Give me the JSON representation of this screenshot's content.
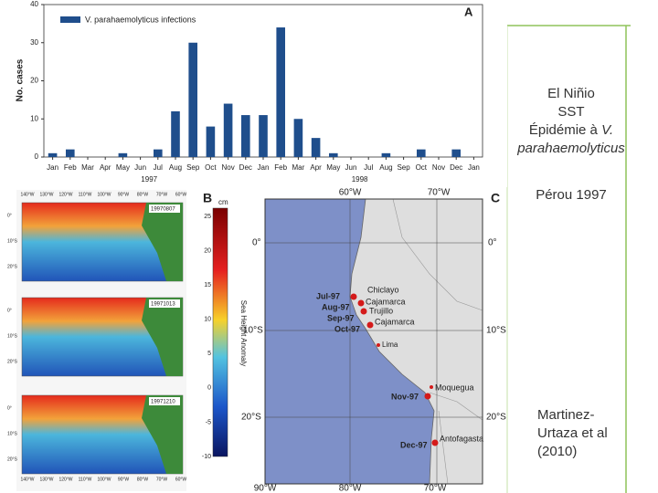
{
  "chart_data": {
    "type": "bar",
    "panel": "A",
    "ylabel": "No. cases",
    "legend": "V. parahaemolyticus infections",
    "color": "#1f4e8c",
    "categories": [
      "Jan",
      "Feb",
      "Mar",
      "Apr",
      "May",
      "Jun",
      "Jul",
      "Aug",
      "Sep",
      "Oct",
      "Nov",
      "Dec",
      "Jan",
      "Feb",
      "Mar",
      "Apr",
      "May",
      "Jun",
      "Jul",
      "Aug",
      "Sep",
      "Oct",
      "Nov",
      "Dec",
      "Jan"
    ],
    "values": [
      1,
      2,
      0,
      0,
      1,
      0,
      2,
      12,
      30,
      8,
      14,
      11,
      11,
      34,
      10,
      5,
      1,
      0,
      0,
      1,
      0,
      2,
      0,
      2,
      0
    ],
    "x_groups": [
      "1997",
      "1998"
    ],
    "ylim": [
      0,
      40
    ],
    "yticks": [
      0,
      10,
      20,
      30,
      40
    ]
  },
  "map_b": {
    "panel": "B",
    "unit": "cm",
    "colorbar_title": "Sea Height Anomaly",
    "colorbar_ticks": [
      25,
      20,
      15,
      10,
      5,
      0,
      -5,
      -10
    ],
    "dates": [
      "19970807",
      "19971013",
      "19971210"
    ],
    "lon_labels": [
      "140°W",
      "130°W",
      "120°W",
      "110°W",
      "100°W",
      "90°W",
      "80°W",
      "70°W",
      "60°W"
    ],
    "lat_labels": [
      "0°",
      "10°S",
      "20°S"
    ]
  },
  "map_c": {
    "panel": "C",
    "top_labels": [
      "60°W",
      "70°W"
    ],
    "bottom_labels": [
      "90°W",
      "80°W",
      "70°W"
    ],
    "lat_labels": [
      "0°",
      "10°S",
      "20°S"
    ],
    "places": [
      "Chiclayo",
      "Cajamarca",
      "Trujillo",
      "Cajamarca",
      "Lima",
      "Moquegua",
      "Antofagasta"
    ],
    "dates": [
      "Jul-97",
      "Aug-97",
      "Sep-97",
      "Oct-97",
      "Nov-97",
      "Dec-97"
    ]
  },
  "side_text": {
    "line1": "El Niñio",
    "line2": "SST",
    "line3_prefix": "Épidémie à",
    "line3_species": "V. parahaemolyticus",
    "country": "Pérou 1997",
    "reference": "Martinez-Urtaza et al (2010)"
  }
}
